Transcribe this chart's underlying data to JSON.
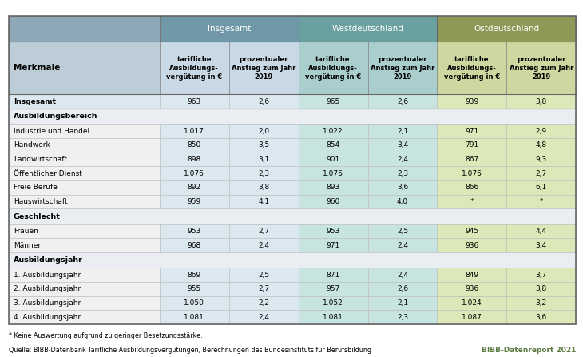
{
  "header_top": [
    "Insgesamt",
    "Westdeutschland",
    "Ostdeutschland"
  ],
  "header_sub": [
    "tarifliche\nAusbildungs-\nvergütung in €",
    "prozentualer\nAnstieg zum Jahr\n2019",
    "tarifliche\nAusbildungs-\nvergütung in €",
    "prozentualer\nAnstieg zum Jahr\n2019",
    "tarifliche\nAusbildungs-\nvergütung in €",
    "prozentualer\nAnstieg zum Jahr\n2019"
  ],
  "col_header": "Merkmale",
  "rows": [
    {
      "label": "Insgesamt",
      "values": [
        "963",
        "2,6",
        "965",
        "2,6",
        "939",
        "3,8"
      ],
      "bold": true,
      "section": false,
      "type": "insgesamt"
    },
    {
      "label": "Ausbildungsbereich",
      "values": [
        "",
        "",
        "",
        "",
        "",
        ""
      ],
      "bold": true,
      "section": true,
      "type": "section"
    },
    {
      "label": "Industrie und Handel",
      "values": [
        "1.017",
        "2,0",
        "1.022",
        "2,1",
        "971",
        "2,9"
      ],
      "bold": false,
      "section": false,
      "type": "data"
    },
    {
      "label": "Handwerk",
      "values": [
        "850",
        "3,5",
        "854",
        "3,4",
        "791",
        "4,8"
      ],
      "bold": false,
      "section": false,
      "type": "data"
    },
    {
      "label": "Landwirtschaft",
      "values": [
        "898",
        "3,1",
        "901",
        "2,4",
        "867",
        "9,3"
      ],
      "bold": false,
      "section": false,
      "type": "data"
    },
    {
      "label": "Öffentlicher Dienst",
      "values": [
        "1.076",
        "2,3",
        "1.076",
        "2,3",
        "1.076",
        "2,7"
      ],
      "bold": false,
      "section": false,
      "type": "data"
    },
    {
      "label": "Freie Berufe",
      "values": [
        "892",
        "3,8",
        "893",
        "3,6",
        "866",
        "6,1"
      ],
      "bold": false,
      "section": false,
      "type": "data"
    },
    {
      "label": "Hauswirtschaft",
      "values": [
        "959",
        "4,1",
        "960",
        "4,0",
        "*",
        "*"
      ],
      "bold": false,
      "section": false,
      "type": "data"
    },
    {
      "label": "Geschlecht",
      "values": [
        "",
        "",
        "",
        "",
        "",
        ""
      ],
      "bold": true,
      "section": true,
      "type": "section"
    },
    {
      "label": "Frauen",
      "values": [
        "953",
        "2,7",
        "953",
        "2,5",
        "945",
        "4,4"
      ],
      "bold": false,
      "section": false,
      "type": "data"
    },
    {
      "label": "Männer",
      "values": [
        "968",
        "2,4",
        "971",
        "2,4",
        "936",
        "3,4"
      ],
      "bold": false,
      "section": false,
      "type": "data"
    },
    {
      "label": "Ausbildungsjahr",
      "values": [
        "",
        "",
        "",
        "",
        "",
        ""
      ],
      "bold": true,
      "section": true,
      "type": "section"
    },
    {
      "label": "1. Ausbildungsjahr",
      "values": [
        "869",
        "2,5",
        "871",
        "2,4",
        "849",
        "3,7"
      ],
      "bold": false,
      "section": false,
      "type": "data"
    },
    {
      "label": "2. Ausbildungsjahr",
      "values": [
        "955",
        "2,7",
        "957",
        "2,6",
        "936",
        "3,8"
      ],
      "bold": false,
      "section": false,
      "type": "data"
    },
    {
      "label": "3. Ausbildungsjahr",
      "values": [
        "1.050",
        "2,2",
        "1.052",
        "2,1",
        "1.024",
        "3,2"
      ],
      "bold": false,
      "section": false,
      "type": "data"
    },
    {
      "label": "4. Ausbildungsjahr",
      "values": [
        "1.081",
        "2,4",
        "1.081",
        "2,3",
        "1.087",
        "3,6"
      ],
      "bold": false,
      "section": false,
      "type": "data"
    }
  ],
  "footnote": "* Keine Auswertung aufgrund zu geringer Besetzungsstärke.",
  "source": "Quelle: BIBB-Datenbank Tarifliche Ausbildungsvergütungen, Berechnungen des Bundesinstituts für Berufsbildung",
  "source_right": "BIBB-Datenreport 2021",
  "color_label_top": "#8fa8b8",
  "color_ins_top": "#7098a8",
  "color_wst_top": "#6aA0A0",
  "color_ost_top": "#909858",
  "color_label_sub": "#bccdd8",
  "color_ins_sub": "#c8d8e4",
  "color_wst_sub": "#aacece",
  "color_ost_sub": "#ccd8a0",
  "color_ins_data": "#dce8f0",
  "color_wst_data": "#c8e4e0",
  "color_ost_data": "#dce8b8",
  "color_insgesamt_label": "#dce8f0",
  "color_section_bg": "#eaeef2",
  "color_label_data": "#f0f0f0",
  "border_dark": "#888888",
  "border_light": "#cccccc",
  "fig_width": 7.3,
  "fig_height": 4.47
}
